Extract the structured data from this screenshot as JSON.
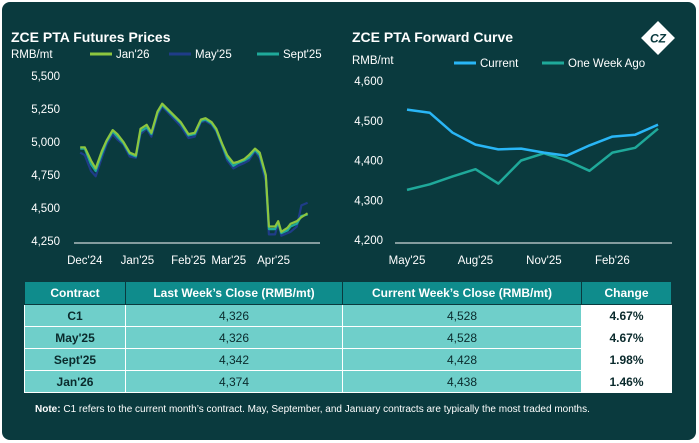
{
  "colors": {
    "background": "#0a3a3e",
    "jan26": "#8dc63f",
    "may25": "#1f3c88",
    "sept25": "#1fa99a",
    "current": "#29b6f6",
    "week_ago": "#1fa99a",
    "table_header": "#0f8c8c",
    "table_cell": "#6fcfca"
  },
  "logo": {
    "text": "CZ",
    "icon": "cz-diamond-logo-icon"
  },
  "chart_data": [
    {
      "type": "line",
      "title": "ZCE PTA Futures Prices",
      "ylabel": "RMB/mt",
      "ylim": [
        4250,
        5500
      ],
      "yticks": [
        "5,500",
        "5,250",
        "5,000",
        "4,750",
        "4,500",
        "4,250"
      ],
      "ytick_values": [
        5500,
        5250,
        5000,
        4750,
        4500,
        4250
      ],
      "xticks": [
        "Dec'24",
        "Jan'25",
        "Feb'25",
        "Mar'25",
        "Apr'25"
      ],
      "x": [
        "2024-12-02",
        "2024-12-05",
        "2024-12-09",
        "2024-12-12",
        "2024-12-16",
        "2024-12-19",
        "2024-12-23",
        "2024-12-26",
        "2024-12-30",
        "2025-01-03",
        "2025-01-07",
        "2025-01-10",
        "2025-01-14",
        "2025-01-17",
        "2025-01-21",
        "2025-01-24",
        "2025-02-05",
        "2025-02-10",
        "2025-02-14",
        "2025-02-18",
        "2025-02-21",
        "2025-02-25",
        "2025-02-28",
        "2025-03-04",
        "2025-03-07",
        "2025-03-11",
        "2025-03-14",
        "2025-03-18",
        "2025-03-21",
        "2025-03-25",
        "2025-03-28",
        "2025-04-01",
        "2025-04-03",
        "2025-04-07",
        "2025-04-09",
        "2025-04-11",
        "2025-04-15",
        "2025-04-17",
        "2025-04-21",
        "2025-04-24",
        "2025-04-28"
      ],
      "series": [
        {
          "name": "Jan'26",
          "values": [
            4960,
            4960,
            4860,
            4800,
            4930,
            5010,
            5090,
            5060,
            5000,
            4920,
            4900,
            5100,
            5130,
            5070,
            5230,
            5290,
            5150,
            5060,
            5070,
            5170,
            5180,
            5150,
            5100,
            4980,
            4900,
            4840,
            4850,
            4870,
            4900,
            4950,
            4920,
            4750,
            4360,
            4360,
            4400,
            4320,
            4350,
            4380,
            4400,
            4430,
            4460
          ]
        },
        {
          "name": "May'25",
          "values": [
            4920,
            4900,
            4780,
            4740,
            4880,
            4980,
            5060,
            5020,
            4980,
            4890,
            4880,
            5060,
            5100,
            5040,
            5200,
            5270,
            5120,
            5030,
            5040,
            5150,
            5160,
            5130,
            5080,
            4960,
            4860,
            4800,
            4820,
            4840,
            4860,
            4930,
            4880,
            4700,
            4300,
            4300,
            4390,
            4290,
            4310,
            4320,
            4360,
            4520,
            4540
          ]
        },
        {
          "name": "Sept'25",
          "values": [
            4950,
            4950,
            4830,
            4780,
            4910,
            5000,
            5080,
            5040,
            4990,
            4910,
            4890,
            5080,
            5110,
            5060,
            5220,
            5280,
            5140,
            5050,
            5060,
            5160,
            5170,
            5140,
            5090,
            4970,
            4880,
            4820,
            4840,
            4860,
            4880,
            4940,
            4900,
            4740,
            4340,
            4340,
            4390,
            4310,
            4330,
            4360,
            4380,
            4440,
            4450
          ]
        }
      ]
    },
    {
      "type": "line",
      "title": "ZCE PTA Forward Curve",
      "ylabel": "RMB/mt",
      "ylim": [
        4200,
        4600
      ],
      "yticks": [
        "4,600",
        "4,500",
        "4,400",
        "4,300",
        "4,200"
      ],
      "ytick_values": [
        4600,
        4500,
        4400,
        4300,
        4200
      ],
      "xticks": [
        "May'25",
        "Aug'25",
        "Nov'25",
        "Feb'26"
      ],
      "xtick_index": [
        0,
        3,
        6,
        9
      ],
      "x": [
        "May'25",
        "Jun'25",
        "Jul'25",
        "Aug'25",
        "Sep'25",
        "Oct'25",
        "Nov'25",
        "Dec'25",
        "Jan'26",
        "Feb'26",
        "Mar'26",
        "Apr'26"
      ],
      "series": [
        {
          "name": "Current",
          "values": [
            4528,
            4520,
            4470,
            4440,
            4428,
            4430,
            4420,
            4412,
            4438,
            4460,
            4465,
            4490
          ]
        },
        {
          "name": "One Week Ago",
          "values": [
            4326,
            4340,
            4360,
            4378,
            4342,
            4400,
            4418,
            4400,
            4374,
            4420,
            4432,
            4480
          ]
        }
      ]
    }
  ],
  "table": {
    "headers": [
      "Contract",
      "Last Week’s Close (RMB/mt)",
      "Current Week’s Close (RMB/mt)",
      "Change"
    ],
    "rows": [
      [
        "C1",
        "4,326",
        "4,528",
        "4.67%"
      ],
      [
        "May'25",
        "4,326",
        "4,528",
        "4.67%"
      ],
      [
        "Sept'25",
        "4,342",
        "4,428",
        "1.98%"
      ],
      [
        "Jan'26",
        "4,374",
        "4,438",
        "1.46%"
      ]
    ]
  },
  "note": {
    "label": "Note:",
    "text": "C1 refers to the current month’s contract. May, September, and January contracts are typically the most traded months."
  }
}
